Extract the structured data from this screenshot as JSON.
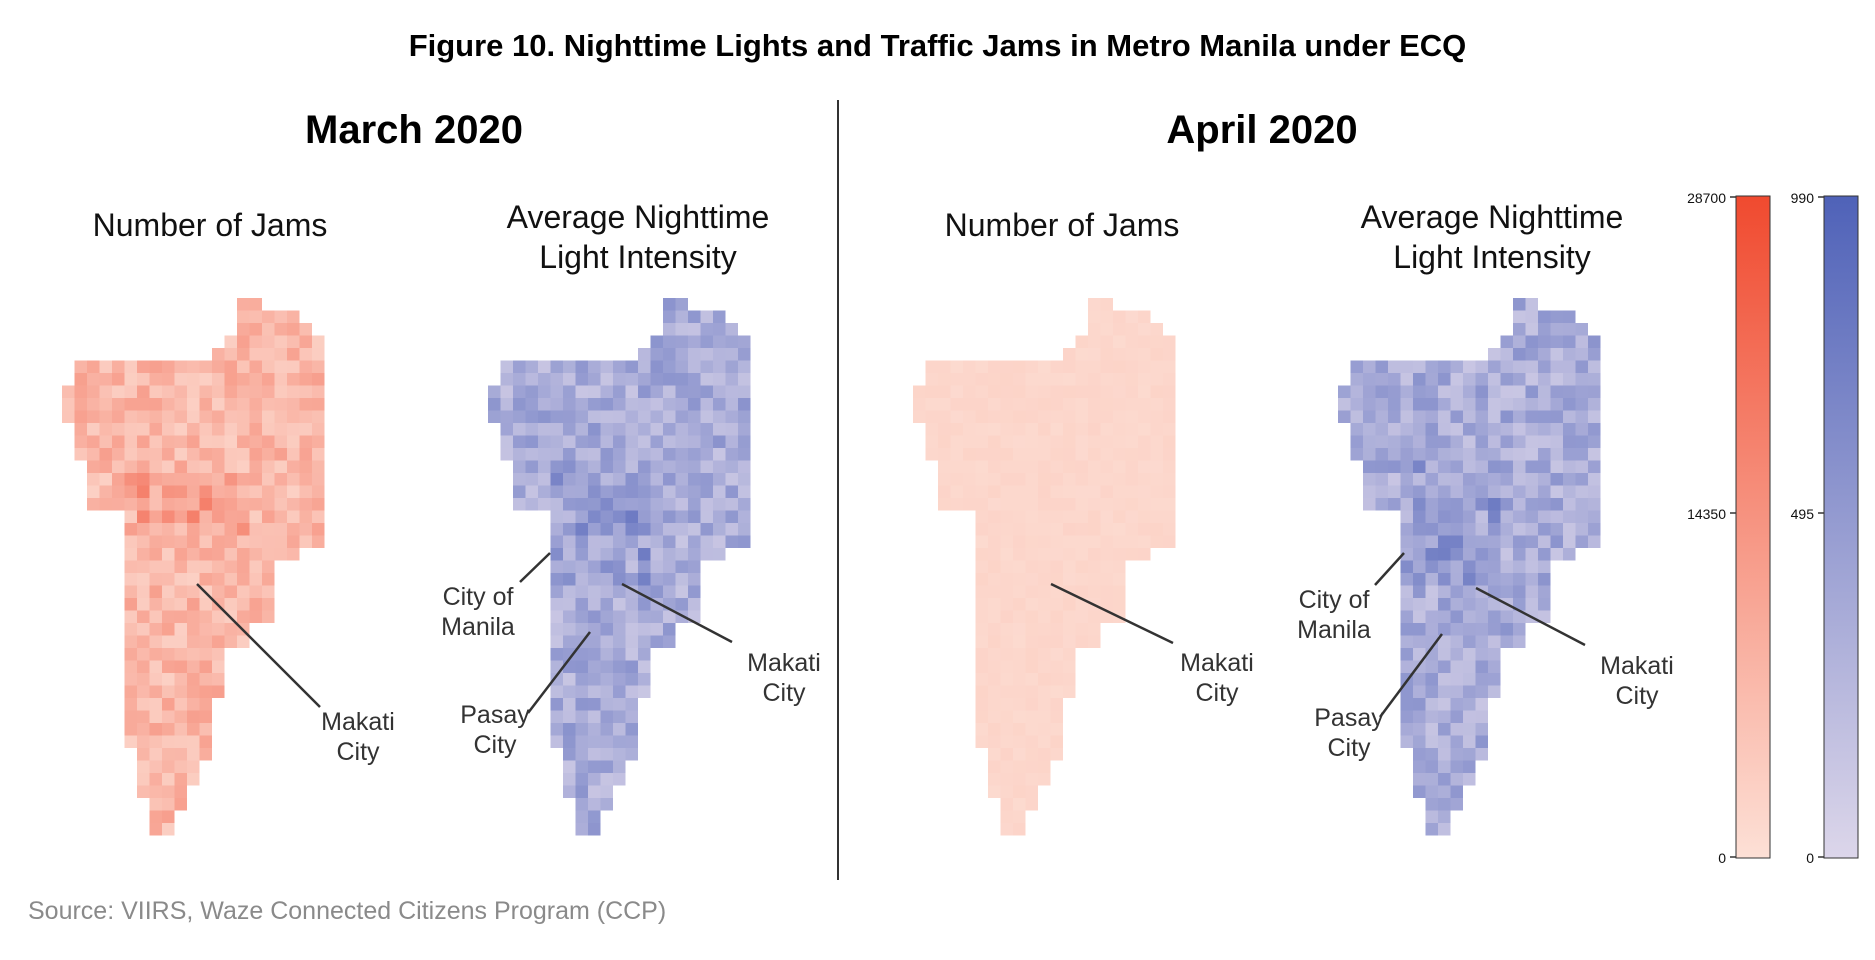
{
  "figure_title": "Figure 10. Nighttime Lights and Traffic Jams in Metro Manila under ECQ",
  "periods": [
    "March 2020",
    "April 2020"
  ],
  "panel_titles": {
    "jams": "Number of Jams",
    "lights_line1": "Average Nighttime",
    "lights_line2": "Light Intensity"
  },
  "annotations": {
    "makati_line1": "Makati",
    "makati_line2": "City",
    "manila_line1": "City of",
    "manila_line2": "Manila",
    "pasay_line1": "Pasay",
    "pasay_line2": "City"
  },
  "source": "Source: VIIRS, Waze Connected Citizens Program (CCP)",
  "colors": {
    "jams_low": "#fde0d6",
    "jams_high": "#f04a2f",
    "lights_low": "#dcd6ea",
    "lights_high": "#4f62b8"
  },
  "chart_data": [
    {
      "type": "heatmap",
      "title": "Number of Jams",
      "period": "March 2020",
      "metric": "jams",
      "scale": [
        0,
        28700
      ],
      "overall_level": 0.3
    },
    {
      "type": "heatmap",
      "title": "Average Nighttime Light Intensity",
      "period": "March 2020",
      "metric": "lights",
      "scale": [
        0,
        990
      ],
      "overall_level": 0.4
    },
    {
      "type": "heatmap",
      "title": "Number of Jams",
      "period": "April 2020",
      "metric": "jams",
      "scale": [
        0,
        28700
      ],
      "overall_level": 0.07
    },
    {
      "type": "heatmap",
      "title": "Average Nighttime Light Intensity",
      "period": "April 2020",
      "metric": "lights",
      "scale": [
        0,
        990
      ],
      "overall_level": 0.4
    }
  ],
  "legends": {
    "jams": {
      "min": 0,
      "max": 28700,
      "ticks": [
        "28700",
        "14350",
        "0"
      ]
    },
    "lights": {
      "min": 0,
      "max": 990,
      "ticks": [
        "990",
        "495",
        "0"
      ]
    }
  }
}
